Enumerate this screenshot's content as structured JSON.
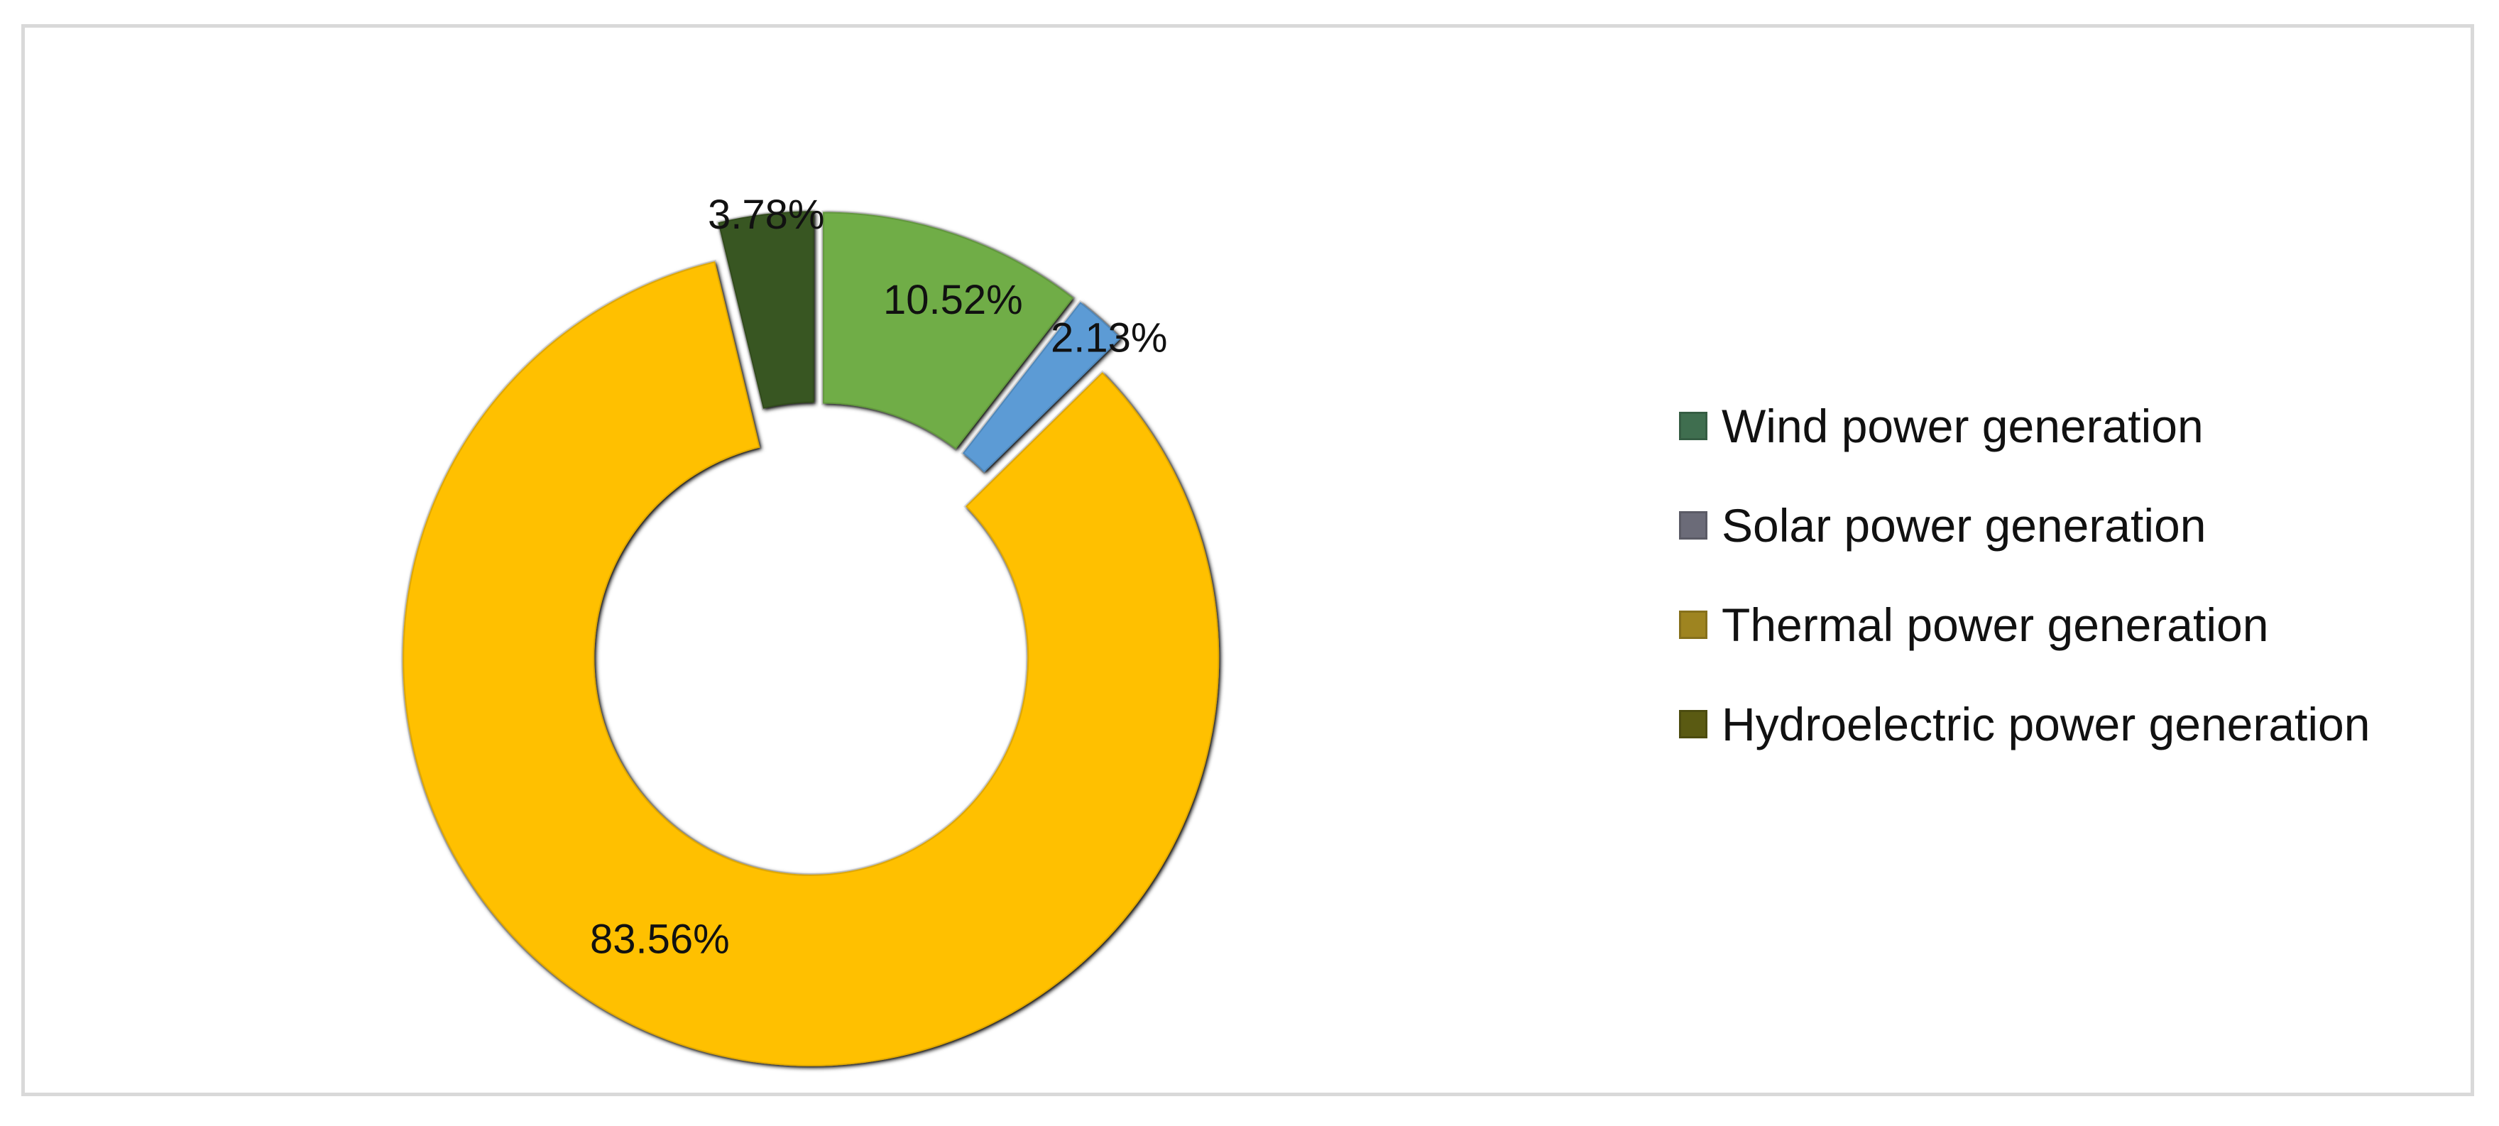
{
  "chart_data": {
    "type": "pie",
    "variant": "donut",
    "title": "",
    "categories": [
      "Wind power generation",
      "Solar power generation",
      "Thermal power generation",
      "Hydroelectric power generation"
    ],
    "values": [
      10.52,
      2.13,
      83.56,
      3.78
    ],
    "labels": [
      "10.52%",
      "2.13%",
      "83.56%",
      "3.78%"
    ],
    "slice_colors": [
      "#70ad47",
      "#5b9bd5",
      "#ffc000",
      "#375623"
    ],
    "legend_colors": [
      "#3f6e4f",
      "#6b6b78",
      "#9e8420",
      "#5a5a12"
    ],
    "legend_position": "right",
    "exploded": true
  }
}
